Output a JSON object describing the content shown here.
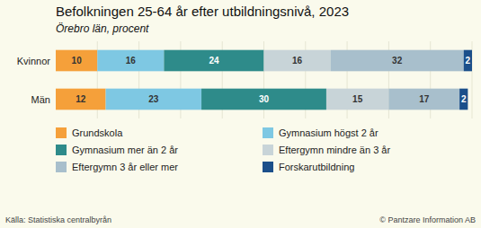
{
  "chart_data": {
    "type": "bar",
    "orientation": "horizontal",
    "stacked": true,
    "title": "Befolkningen 25-64 år efter utbildningsnivå, 2023",
    "subtitle": "Örebro län, procent",
    "categories": [
      "Män",
      "Kvinnor"
    ],
    "series": [
      {
        "name": "Grundskola",
        "color": "#F5A03A",
        "values": [
          12,
          10
        ]
      },
      {
        "name": "Gymnasium högst 2 år",
        "color": "#7EC8E3",
        "values": [
          23,
          16
        ]
      },
      {
        "name": "Gymnasium mer än 2 år",
        "color": "#2E8B8A",
        "values": [
          30,
          24
        ]
      },
      {
        "name": "Eftergymn mindre än 3 år",
        "color": "#C8D4D8",
        "values": [
          15,
          16
        ]
      },
      {
        "name": "Eftergymn 3 år eller mer",
        "color": "#A8BFCC",
        "values": [
          17,
          32
        ]
      },
      {
        "name": "Forskarutbildning",
        "color": "#1B4F8A",
        "values": [
          2,
          2
        ]
      }
    ],
    "xlim": [
      0,
      100
    ],
    "xticks": [
      10,
      20,
      30,
      40,
      50,
      60,
      70,
      80,
      90,
      100
    ],
    "grid": true,
    "tick_labels": "y",
    "data_labels": true,
    "legend": "bottom",
    "annotations": [
      "Källa: Statistiska centralbyrån",
      "© Pantzare Information AB"
    ]
  }
}
